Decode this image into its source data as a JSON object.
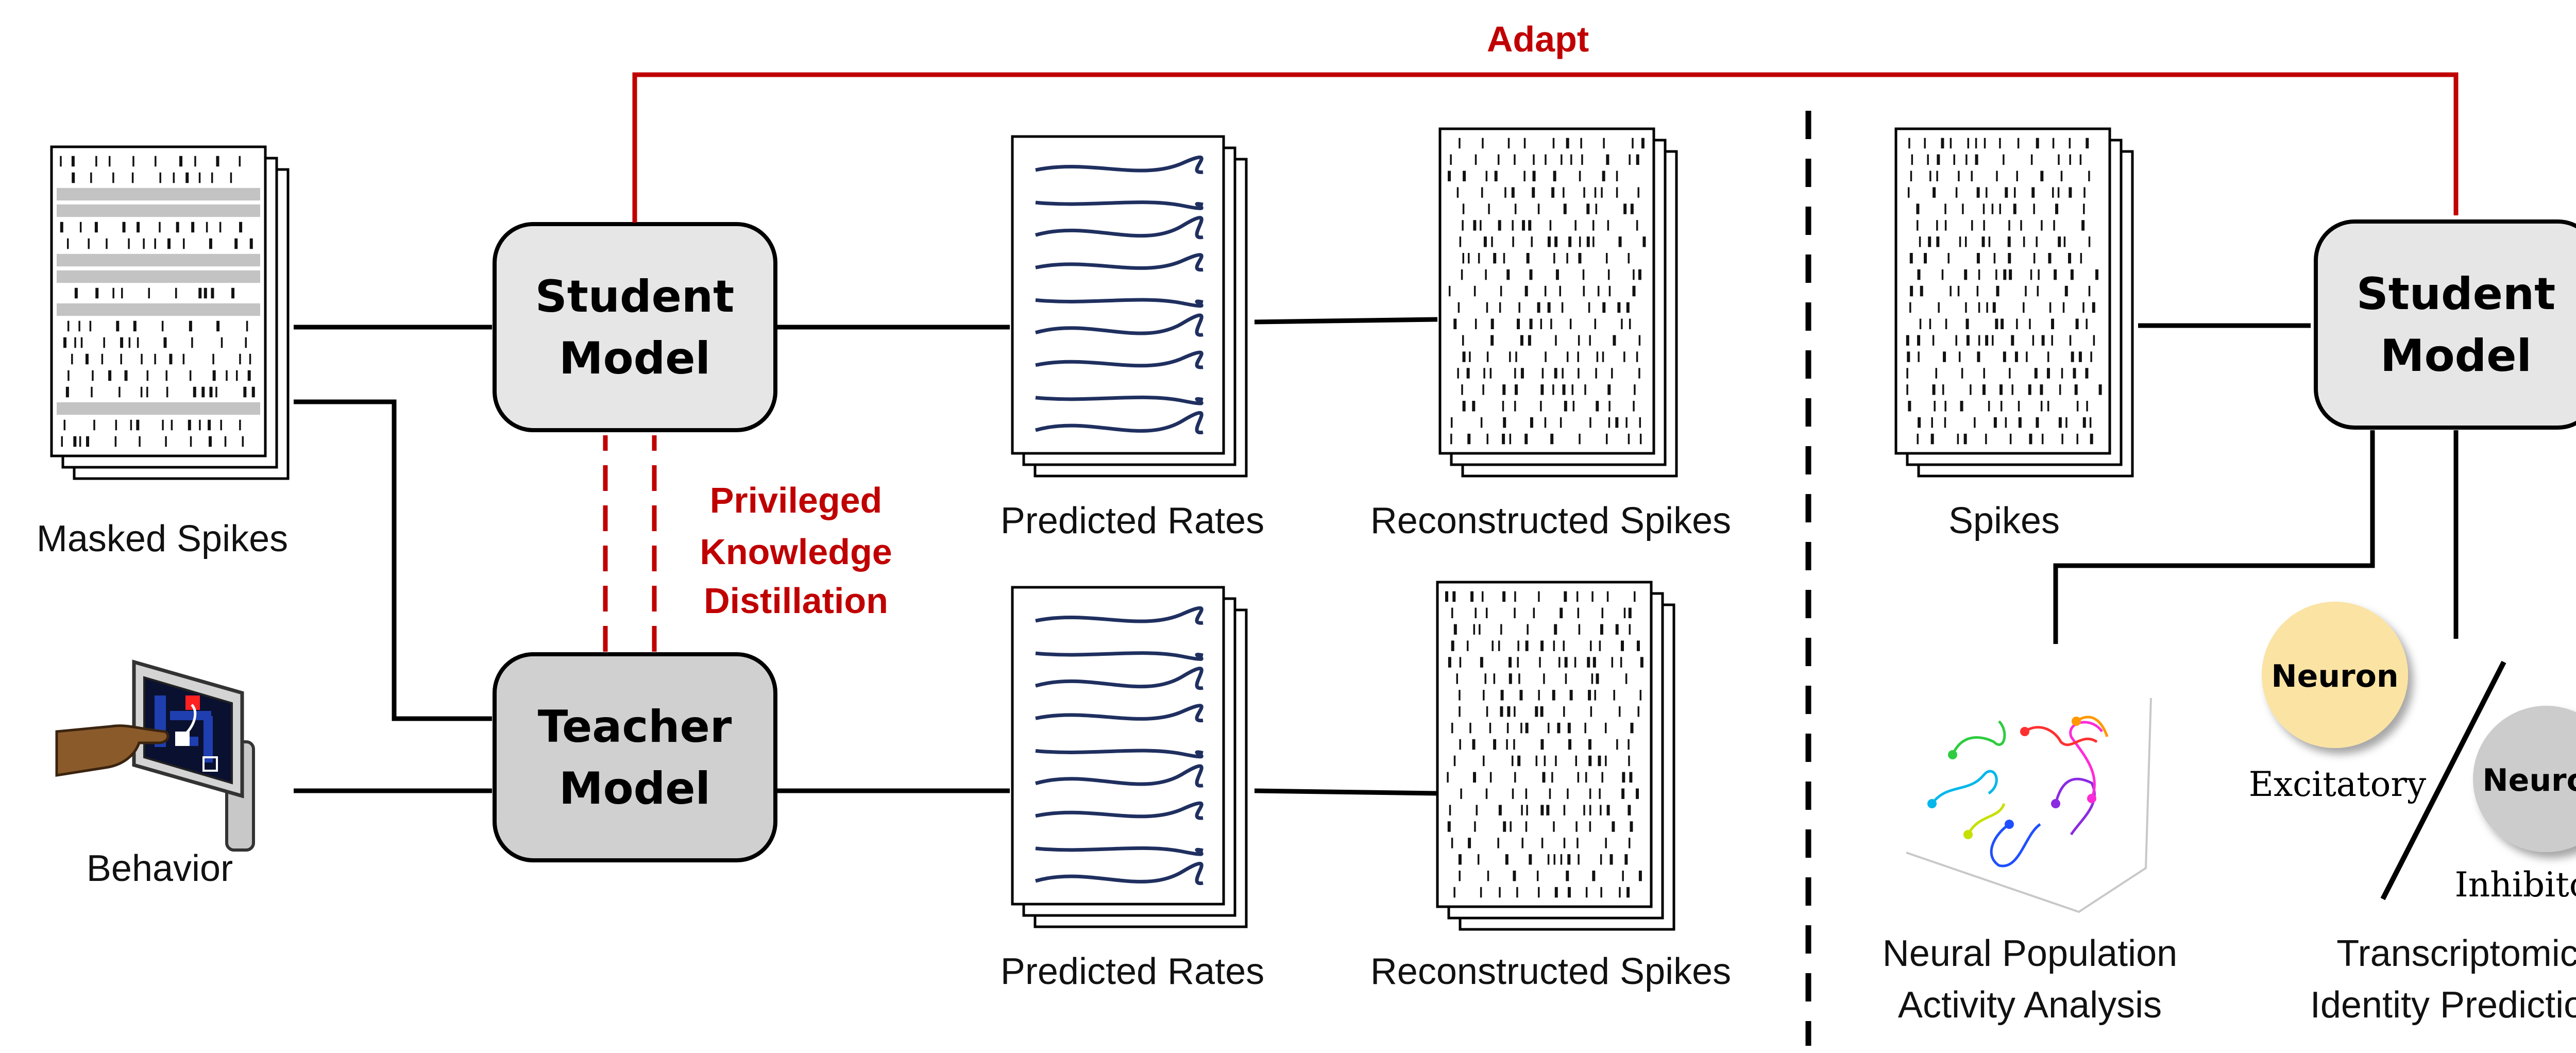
{
  "colors": {
    "accent_red": "#c00000",
    "student_box_fill": "#e6e6e6",
    "teacher_box_fill": "#d0d0d0",
    "curve_navy": "#1f2f5f",
    "excitatory_fill": "#fbe3a3",
    "inhibitory_fill": "#cccccc"
  },
  "adapt_label": "Adapt",
  "left_panel": {
    "masked_spikes_label": "Masked Spikes",
    "behavior_label": "Behavior",
    "student_model": {
      "line1": "Student",
      "line2": "Model"
    },
    "teacher_model": {
      "line1": "Teacher",
      "line2": "Model"
    },
    "distillation_label": {
      "line1": "Privileged",
      "line2": "Knowledge",
      "line3": "Distillation"
    },
    "top_predicted_rates_label": "Predicted Rates",
    "top_reconstructed_spikes_label": "Reconstructed Spikes",
    "bottom_predicted_rates_label": "Predicted Rates",
    "bottom_reconstructed_spikes_label": "Reconstructed Spikes"
  },
  "right_panel": {
    "spikes_label": "Spikes",
    "student_model": {
      "line1": "Student",
      "line2": "Model"
    },
    "population_analysis_label": {
      "line1": "Neural Population",
      "line2": "Activity Analysis"
    },
    "transcriptomic_label": {
      "line1": "Transcriptomic",
      "line2": "Identity Prediction"
    },
    "excitatory_neuron": {
      "circle_text": "Neuron",
      "type_label": "Excitatory"
    },
    "inhibitory_neuron": {
      "circle_text": "Neuron",
      "type_label": "Inhibitory"
    }
  },
  "icons": [
    "spike-raster-icon",
    "rate-curves-icon",
    "monkey-touchscreen-icon",
    "trajectory-3d-icon"
  ]
}
